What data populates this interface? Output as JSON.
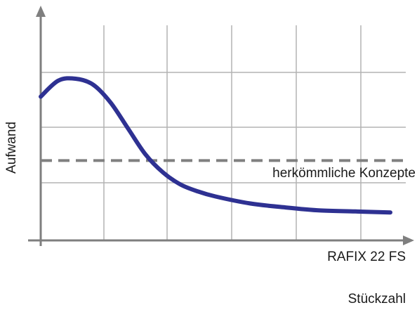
{
  "chart_data": {
    "type": "line",
    "ylabel": "Aufwand",
    "xlabel": "Stückzahl",
    "grid": true,
    "xlim": [
      0,
      10
    ],
    "ylim": [
      0,
      10
    ],
    "series": [
      {
        "name": "RAFIX 22 FS",
        "style": "solid",
        "color": "#2e3192",
        "x": [
          0,
          0.5,
          1,
          1.5,
          2,
          2.5,
          3,
          3.5,
          4,
          4.5,
          5,
          6,
          7,
          8,
          9,
          10
        ],
        "y": [
          7.2,
          8.0,
          8.1,
          7.8,
          6.9,
          5.6,
          4.3,
          3.4,
          2.8,
          2.45,
          2.2,
          1.85,
          1.65,
          1.5,
          1.45,
          1.4
        ]
      },
      {
        "name": "herkömmliche Konzepte",
        "style": "dashed",
        "color": "#808080",
        "x": [
          0,
          10
        ],
        "y": [
          4.0,
          4.0
        ]
      }
    ]
  },
  "colors": {
    "grid": "#b4b4b4",
    "axis": "#7f7f7f",
    "curve": "#2e3192",
    "reference": "#808080",
    "text": "#1a1a1a"
  }
}
